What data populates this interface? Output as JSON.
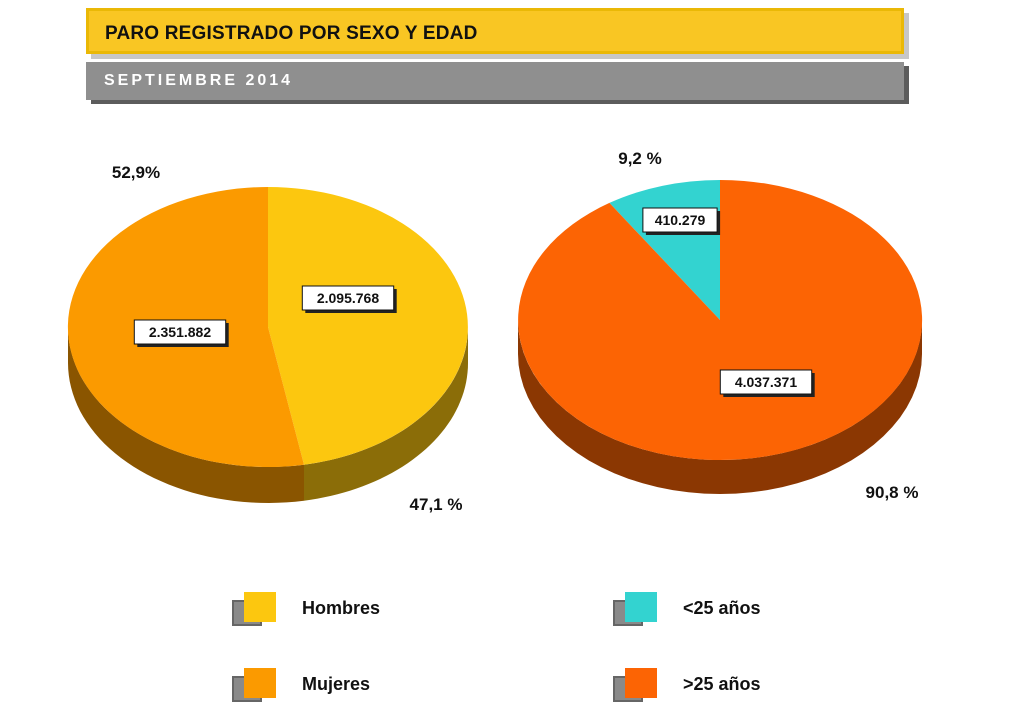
{
  "header": {
    "title": "PARO REGISTRADO POR SEXO Y EDAD",
    "subtitle": "SEPTIEMBRE  2014"
  },
  "colors": {
    "hombres": "#fcc70f",
    "mujeres": "#fb9a00",
    "menores_25": "#33d3d0",
    "mayores_25": "#fc6404"
  },
  "chart_data": [
    {
      "type": "pie",
      "style": "3d",
      "slices": [
        {
          "label": "Hombres",
          "value": 2095768,
          "value_label": "2.095.768",
          "percent_label": "47,1 %",
          "color": "#fcc70f"
        },
        {
          "label": "Mujeres",
          "value": 2351882,
          "value_label": "2.351.882",
          "percent_label": "52,9%",
          "color": "#fb9a00"
        }
      ]
    },
    {
      "type": "pie",
      "style": "3d",
      "slices": [
        {
          "label": "<25 años",
          "value": 410279,
          "value_label": "410.279",
          "percent_label": "9,2 %",
          "color": "#33d3d0"
        },
        {
          "label": ">25 años",
          "value": 4037371,
          "value_label": "4.037.371",
          "percent_label": "90,8 %",
          "color": "#fc6404"
        }
      ]
    }
  ],
  "legend": [
    {
      "label": "Hombres",
      "color": "#fcc70f"
    },
    {
      "label": "Mujeres",
      "color": "#fb9a00"
    },
    {
      "label": "<25 años",
      "color": "#33d3d0"
    },
    {
      "label": ">25 años",
      "color": "#fc6404"
    }
  ]
}
